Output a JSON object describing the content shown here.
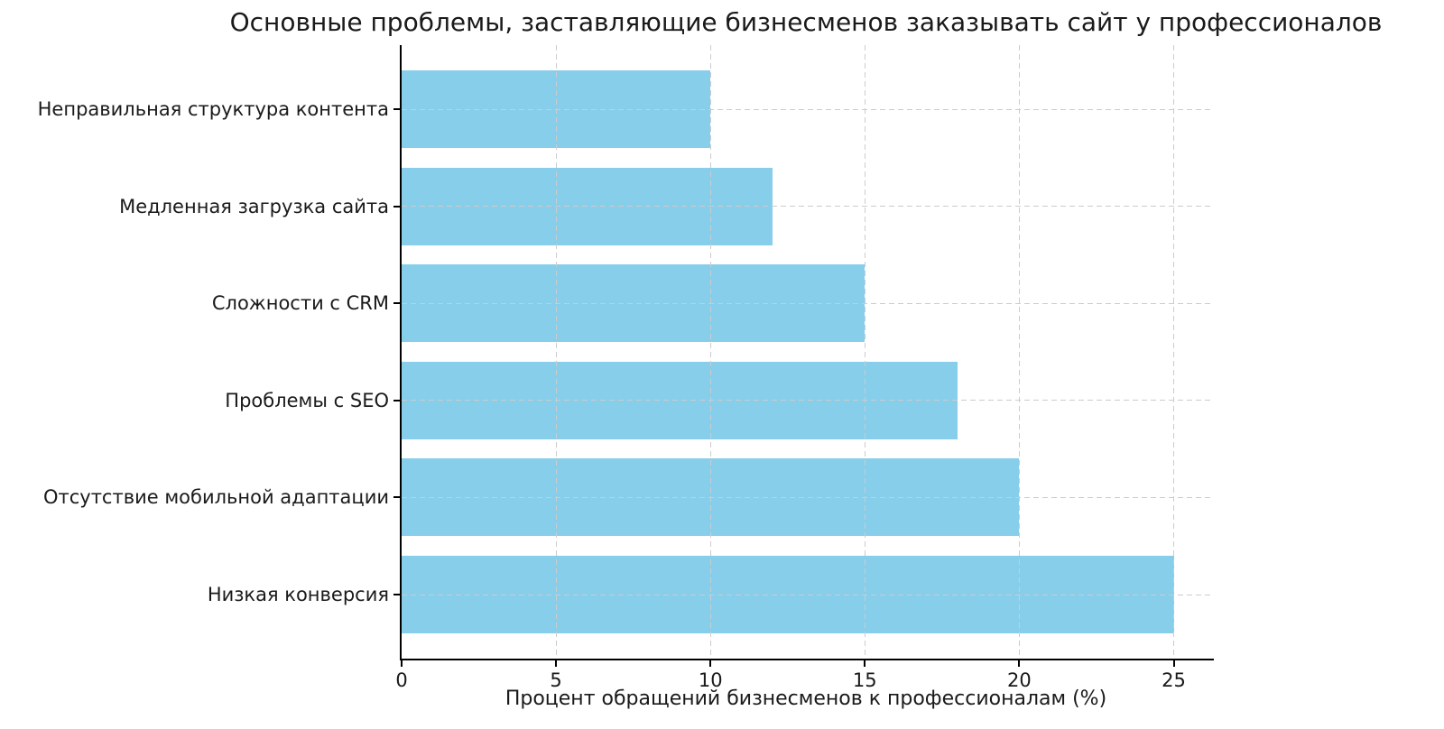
{
  "chart_data": {
    "type": "bar",
    "orientation": "horizontal",
    "title": "Основные проблемы, заставляющие бизнесменов заказывать сайт у профессионалов",
    "xlabel": "Процент обращений бизнесменов к профессионалам (%)",
    "ylabel": "",
    "categories": [
      "Неправильная структура контента",
      "Медленная загрузка сайта",
      "Сложности с CRM",
      "Проблемы с SEO",
      "Отсутствие мобильной адаптации",
      "Низкая конверсия"
    ],
    "values": [
      10,
      12,
      15,
      18,
      20,
      25
    ],
    "xticks": [
      0,
      5,
      10,
      15,
      20,
      25
    ],
    "xlim": [
      0,
      26.3
    ],
    "grid": true,
    "grid_style": "dashed",
    "grid_on_top_of_bars": true,
    "legend": null,
    "bar_color": "#87CEEB",
    "grid_color": "#cccccc",
    "axis_color": "#000000",
    "text_color": "#1a1a1a",
    "background_color": "#ffffff"
  }
}
